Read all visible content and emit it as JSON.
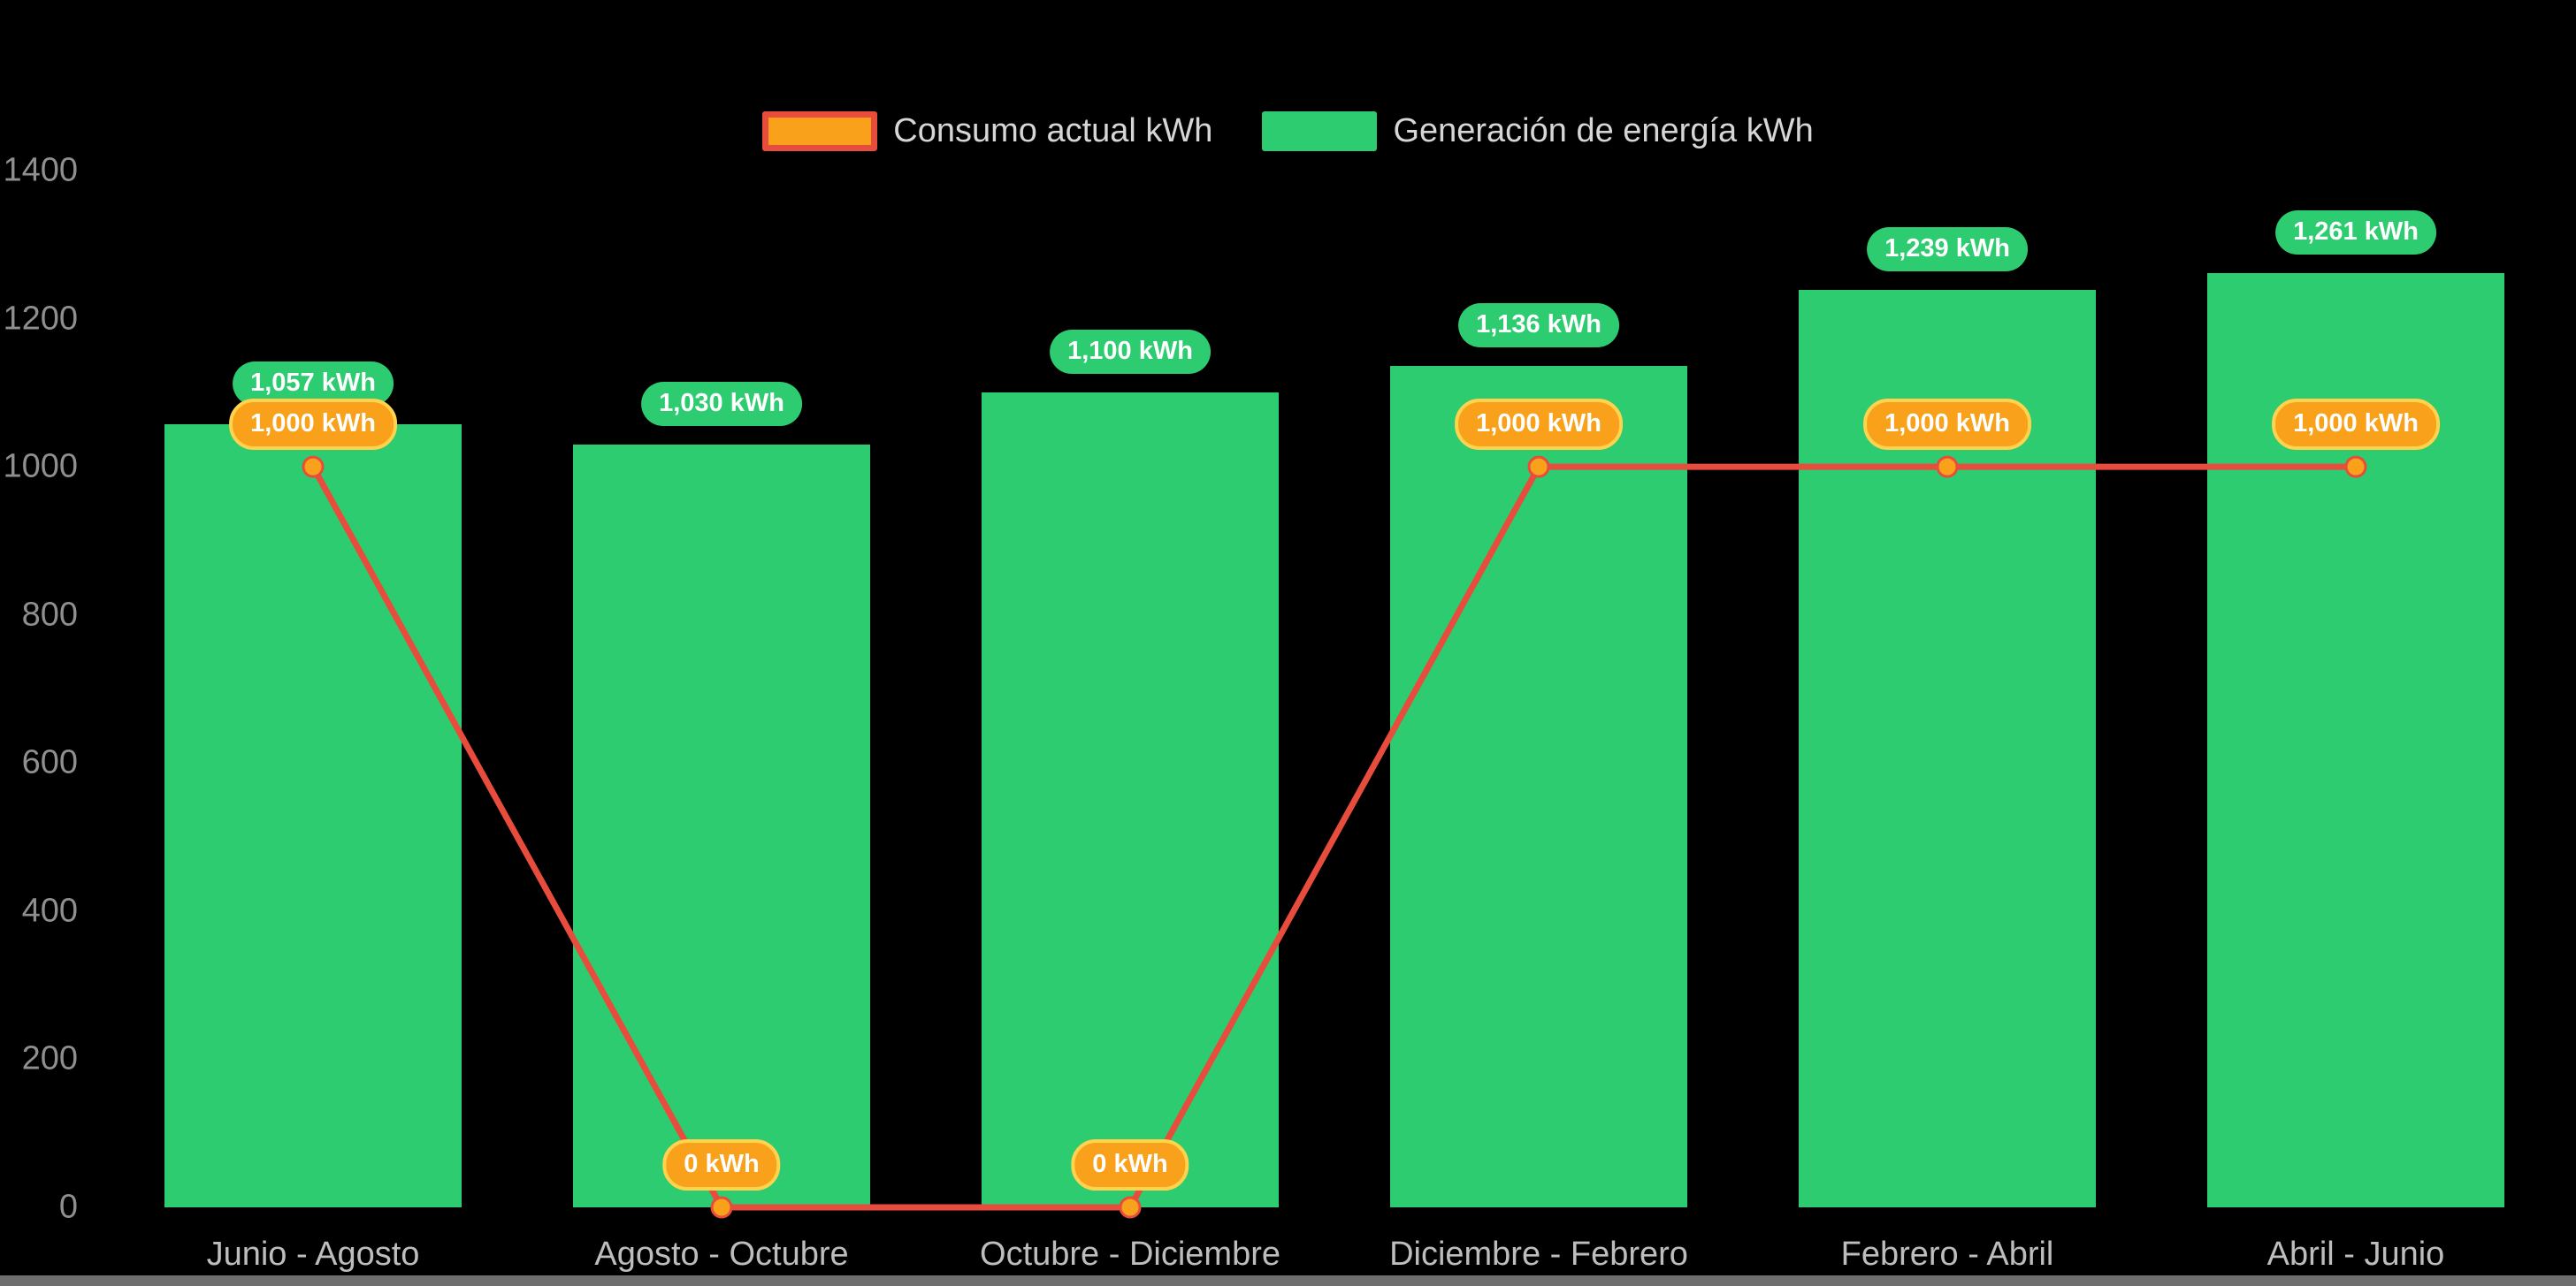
{
  "page": {
    "background": "#000000"
  },
  "legend": [
    {
      "label": "Consumo actual kWh"
    },
    {
      "label": "Generación de energía kWh"
    }
  ],
  "chart_data": {
    "type": "bar+line",
    "title": "",
    "xlabel": "",
    "ylabel": "",
    "categories": [
      "Junio - Agosto",
      "Agosto - Octubre",
      "Octubre - Diciembre",
      "Diciembre - Febrero",
      "Febrero - Abril",
      "Abril - Junio"
    ],
    "series": [
      {
        "name": "Consumo actual kWh",
        "type": "line",
        "values": [
          1000,
          0,
          0,
          1000,
          1000,
          1000
        ],
        "point_labels": [
          "1,000 kWh",
          "0 kWh",
          "0 kWh",
          "1,000 kWh",
          "1,000 kWh",
          "1,000 kWh"
        ],
        "line_color": "#E74C3C",
        "point_color": "#F9A11B",
        "label_bg": "#F9A11B",
        "label_border": "#FFD34D"
      },
      {
        "name": "Generación de energía kWh",
        "type": "bar",
        "values": [
          1057,
          1030,
          1100,
          1136,
          1239,
          1261
        ],
        "point_labels": [
          "1,057 kWh",
          "1,030 kWh",
          "1,100 kWh",
          "1,136 kWh",
          "1,239 kWh",
          "1,261 kWh"
        ],
        "bar_color": "#2ECC71",
        "label_bg": "#2ECC71"
      }
    ],
    "ylim": [
      0,
      1400
    ],
    "yticks": [
      0,
      200,
      400,
      600,
      800,
      1000,
      1200,
      1400
    ],
    "grid": false,
    "legend_position": "top",
    "background": "#000000"
  }
}
